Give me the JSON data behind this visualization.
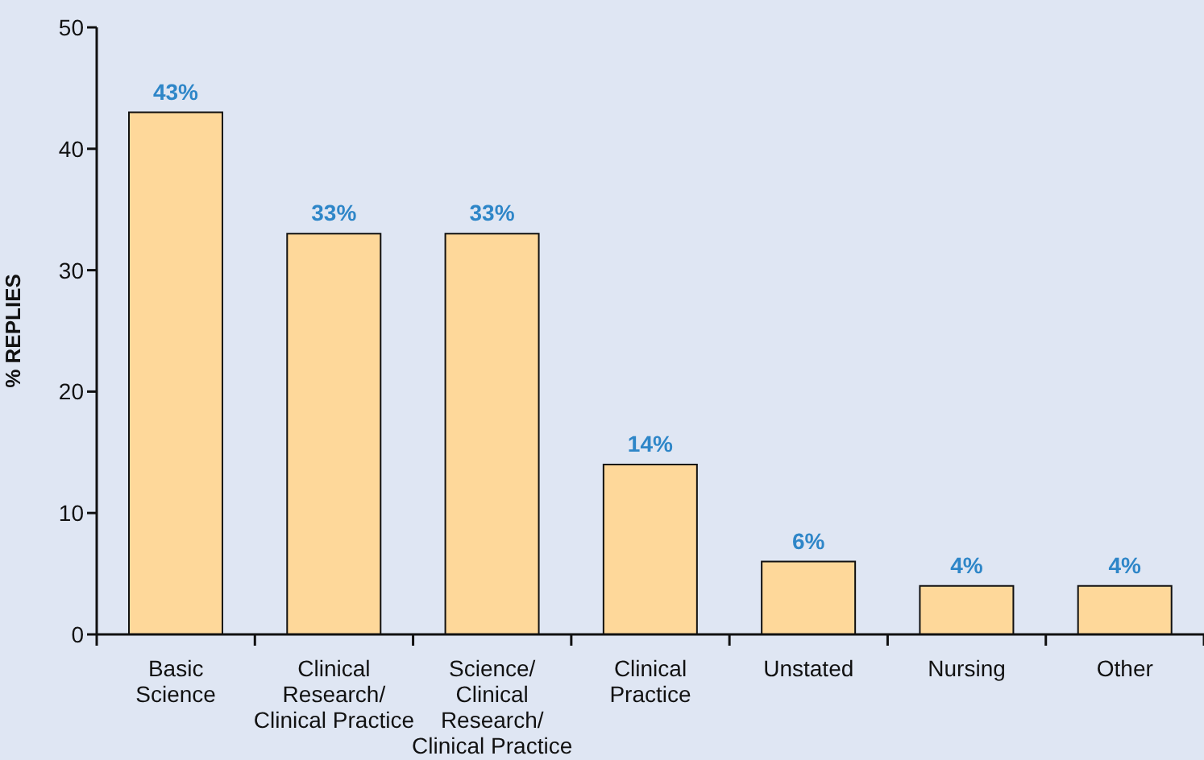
{
  "chart_data": {
    "type": "bar",
    "ylabel": "% REPLIES",
    "categories": [
      "Basic\nScience",
      "Clinical\nResearch/\nClinical Practice",
      "Science/\nClinical\nResearch/\nClinical Practice",
      "Clinical\nPractice",
      "Unstated",
      "Nursing",
      "Other"
    ],
    "values": [
      43,
      33,
      33,
      14,
      6,
      4,
      4
    ],
    "value_labels": [
      "43%",
      "33%",
      "33%",
      "14%",
      "6%",
      "4%",
      "4%"
    ],
    "color": "#fed89a",
    "ylim": [
      0,
      50
    ],
    "yticks": [
      0,
      10,
      20,
      30,
      40,
      50
    ],
    "grid": false,
    "legend": false
  }
}
